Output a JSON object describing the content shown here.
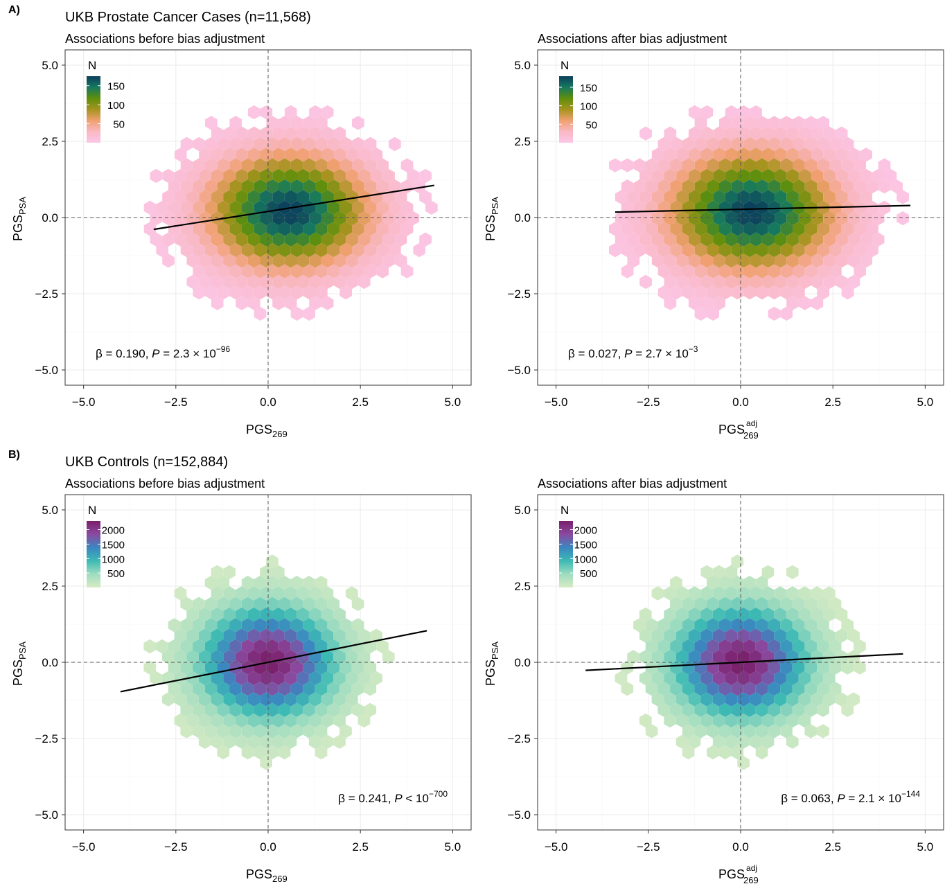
{
  "sections": [
    {
      "label": "A)",
      "title": "UKB Prostate Cancer Cases (n=11,568)"
    },
    {
      "label": "B)",
      "title": "UKB Controls (n=152,884)"
    }
  ],
  "chart_data": [
    {
      "type": "hexbin",
      "subtitle": "Associations before bias adjustment",
      "xlabel": {
        "base": "PGS",
        "sub": "269",
        "sup": ""
      },
      "ylabel": {
        "base": "PGS",
        "sub": "PSA"
      },
      "xlim": [
        -5.5,
        5.5
      ],
      "ylim": [
        -5.5,
        5.5
      ],
      "xticks": [
        "−5.0",
        "−2.5",
        "0.0",
        "2.5",
        "5.0"
      ],
      "yticks": [
        "5.0",
        "2.5",
        "0.0",
        "−2.5",
        "−5.0"
      ],
      "tick_values": [
        -5,
        -2.5,
        0,
        2.5,
        5
      ],
      "grid": true,
      "legend": {
        "title": "N",
        "ticks": [
          "150",
          "100",
          "50"
        ],
        "tick_values": [
          150,
          100,
          50
        ],
        "max": 175,
        "placement": "top-left",
        "colors": [
          "#0c3f5c",
          "#16795e",
          "#5f8f0c",
          "#a6931f",
          "#f0a070",
          "#f9b8c4",
          "#fcc7e8"
        ]
      },
      "density": {
        "center": [
          0.55,
          0.2
        ],
        "sd": [
          1.45,
          1.25
        ],
        "range_x": [
          -3.2,
          4.6
        ],
        "range_y": [
          -4.0,
          3.8
        ],
        "peak": 175
      },
      "regression": {
        "slope": 0.19,
        "intercept": 0.2,
        "x_range": [
          -3.1,
          4.5
        ]
      },
      "annotation": {
        "beta": "β = 0.190,",
        "p_label": "P",
        "p_text": " = 2.3 × 10",
        "p_exp": "−96",
        "position": "bottom-left"
      },
      "reference_lines": {
        "x": 0,
        "y": 0
      }
    },
    {
      "type": "hexbin",
      "subtitle": "Associations after bias adjustment",
      "xlabel": {
        "base": "PGS",
        "sub": "269",
        "sup": "adj"
      },
      "ylabel": {
        "base": "PGS",
        "sub": "PSA"
      },
      "xlim": [
        -5.5,
        5.5
      ],
      "ylim": [
        -5.5,
        5.5
      ],
      "xticks": [
        "−5.0",
        "−2.5",
        "0.0",
        "2.5",
        "5.0"
      ],
      "yticks": [
        "5.0",
        "2.5",
        "0.0",
        "−2.5",
        "−5.0"
      ],
      "tick_values": [
        -5,
        -2.5,
        0,
        2.5,
        5
      ],
      "grid": true,
      "legend": {
        "title": "N",
        "ticks": [
          "150",
          "100",
          "50"
        ],
        "tick_values": [
          150,
          100,
          50
        ],
        "max": 180,
        "placement": "top-left",
        "colors": [
          "#0c3f5c",
          "#16795e",
          "#5f8f0c",
          "#a6931f",
          "#f0a070",
          "#f9b8c4",
          "#fcc7e8"
        ]
      },
      "density": {
        "center": [
          0.3,
          0.2
        ],
        "sd": [
          1.5,
          1.3
        ],
        "range_x": [
          -3.4,
          4.6
        ],
        "range_y": [
          -3.8,
          3.8
        ],
        "peak": 180
      },
      "regression": {
        "slope": 0.027,
        "intercept": 0.27,
        "x_range": [
          -3.4,
          4.6
        ]
      },
      "annotation": {
        "beta": "β = 0.027,",
        "p_label": "P",
        "p_text": " = 2.7 × 10",
        "p_exp": "−3",
        "position": "bottom-left"
      },
      "reference_lines": {
        "x": 0,
        "y": 0
      }
    },
    {
      "type": "hexbin",
      "subtitle": "Associations before bias adjustment",
      "xlabel": {
        "base": "PGS",
        "sub": "269",
        "sup": ""
      },
      "ylabel": {
        "base": "PGS",
        "sub": "PSA"
      },
      "xlim": [
        -5.5,
        5.5
      ],
      "ylim": [
        -5.5,
        5.5
      ],
      "xticks": [
        "−5.0",
        "−2.5",
        "0.0",
        "2.5",
        "5.0"
      ],
      "yticks": [
        "5.0",
        "2.5",
        "0.0",
        "−2.5",
        "−5.0"
      ],
      "tick_values": [
        -5,
        -2.5,
        0,
        2.5,
        5
      ],
      "grid": true,
      "legend": {
        "title": "N",
        "ticks": [
          "2000",
          "1500",
          "1000",
          "500"
        ],
        "tick_values": [
          2000,
          1500,
          1000,
          500
        ],
        "max": 2300,
        "placement": "top-left",
        "colors": [
          "#7a1f6b",
          "#8a4aa0",
          "#3b86c0",
          "#3dbab4",
          "#9edcc0",
          "#d8ebc4"
        ]
      },
      "density": {
        "center": [
          0.0,
          0.0
        ],
        "sd": [
          1.2,
          1.2
        ],
        "range_x": [
          -4.2,
          4.4
        ],
        "range_y": [
          -4.7,
          4.0
        ],
        "peak": 2300
      },
      "regression": {
        "slope": 0.241,
        "intercept": 0.0,
        "x_range": [
          -4.0,
          4.3
        ]
      },
      "annotation": {
        "beta": "β = 0.241,",
        "p_label": "P",
        "p_text": " < 10",
        "p_exp": "−700",
        "position": "bottom-right"
      },
      "reference_lines": {
        "x": 0,
        "y": 0
      }
    },
    {
      "type": "hexbin",
      "subtitle": "Associations after bias adjustment",
      "xlabel": {
        "base": "PGS",
        "sub": "269",
        "sup": "adj"
      },
      "ylabel": {
        "base": "PGS",
        "sub": "PSA"
      },
      "xlim": [
        -5.5,
        5.5
      ],
      "ylim": [
        -5.5,
        5.5
      ],
      "xticks": [
        "−5.0",
        "−2.5",
        "0.0",
        "2.5",
        "5.0"
      ],
      "yticks": [
        "5.0",
        "2.5",
        "0.0",
        "−2.5",
        "−5.0"
      ],
      "tick_values": [
        -5,
        -2.5,
        0,
        2.5,
        5
      ],
      "grid": true,
      "legend": {
        "title": "N",
        "ticks": [
          "2000",
          "1500",
          "1000",
          "500"
        ],
        "tick_values": [
          2000,
          1500,
          1000,
          500
        ],
        "max": 2300,
        "placement": "top-left",
        "colors": [
          "#7a1f6b",
          "#8a4aa0",
          "#3b86c0",
          "#3dbab4",
          "#9edcc0",
          "#d8ebc4"
        ]
      },
      "density": {
        "center": [
          0.0,
          0.0
        ],
        "sd": [
          1.2,
          1.2
        ],
        "range_x": [
          -4.4,
          4.4
        ],
        "range_y": [
          -4.6,
          4.0
        ],
        "peak": 2300
      },
      "regression": {
        "slope": 0.063,
        "intercept": 0.0,
        "x_range": [
          -4.2,
          4.4
        ]
      },
      "annotation": {
        "beta": "β = 0.063,",
        "p_label": "P",
        "p_text": " = 2.1 × 10",
        "p_exp": "−144",
        "position": "bottom-right"
      },
      "reference_lines": {
        "x": 0,
        "y": 0
      }
    }
  ]
}
